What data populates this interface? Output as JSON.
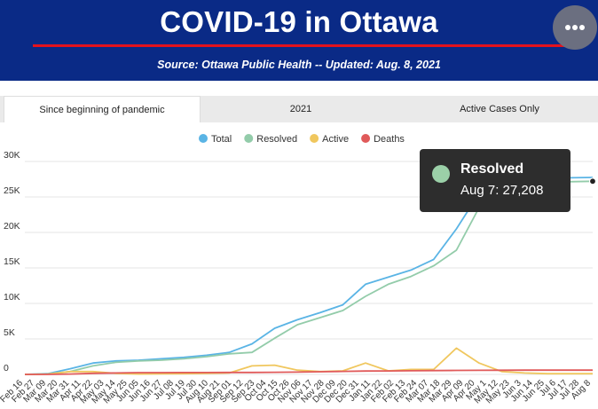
{
  "header": {
    "title": "COVID-19 in Ottawa",
    "source": "Source:  Ottawa Public Health -- Updated:  Aug. 8, 2021"
  },
  "menu": {
    "icon": "ellipsis-icon"
  },
  "tabs": [
    {
      "label": "Since beginning of pandemic",
      "active": true
    },
    {
      "label": "2021",
      "active": false
    },
    {
      "label": "Active Cases Only",
      "active": false
    }
  ],
  "tooltip": {
    "series": "Resolved",
    "date": "Aug 7",
    "value": "27,208",
    "text": "Aug 7: 27,208"
  },
  "chart_data": {
    "type": "line",
    "legend_position": "top-center",
    "grid": true,
    "ylim": [
      0,
      30000
    ],
    "y_ticks": [
      0,
      5000,
      10000,
      15000,
      20000,
      25000,
      30000
    ],
    "y_tick_labels": [
      "0",
      "5K",
      "10K",
      "15K",
      "20K",
      "25K",
      "30K"
    ],
    "x_tick_labels": [
      "Feb 16",
      "Feb 27",
      "Mar 09",
      "Mar 20",
      "Mar 31",
      "Apr 11",
      "Apr 22",
      "May 03",
      "May 14",
      "May 25",
      "Jun 05",
      "Jun 16",
      "Jun 27",
      "Jul 08",
      "Jul 19",
      "Jul 30",
      "Aug 10",
      "Aug 21",
      "Sep 01",
      "Sep 12",
      "Sep 23",
      "Oct 04",
      "Oct 15",
      "Oct 26",
      "Nov 06",
      "Nov 17",
      "Nov 28",
      "Dec 09",
      "Dec 20",
      "Dec 31",
      "Jan 11",
      "Jan 22",
      "Feb 02",
      "Feb 13",
      "Feb 24",
      "Mar 07",
      "Mar 18",
      "Mar 29",
      "Apr 09",
      "Apr 20",
      "May 1",
      "May 12",
      "May 23",
      "Jun 3",
      "Jun 14",
      "Jun 25",
      "Jul 6",
      "Jul 17",
      "Jul 28",
      "Aug 8"
    ],
    "x": [
      "Feb 16",
      "Mar 09",
      "Mar 31",
      "Apr 22",
      "May 14",
      "Jun 05",
      "Jun 27",
      "Jul 19",
      "Aug 10",
      "Sep 01",
      "Sep 23",
      "Oct 15",
      "Nov 06",
      "Nov 28",
      "Dec 20",
      "Jan 11",
      "Feb 02",
      "Feb 24",
      "Mar 18",
      "Apr 09",
      "May 1",
      "May 23",
      "Jun 14",
      "Jul 6",
      "Jul 28",
      "Aug 8"
    ],
    "series": [
      {
        "name": "Total",
        "color": "#5ab4e5",
        "values": [
          0,
          100,
          800,
          1600,
          1900,
          2000,
          2200,
          2400,
          2700,
          3100,
          4300,
          6500,
          7700,
          8700,
          9800,
          12700,
          13700,
          14700,
          16200,
          20500,
          25500,
          27100,
          27400,
          27600,
          27700,
          27750
        ]
      },
      {
        "name": "Resolved",
        "color": "#93ccaa",
        "values": [
          0,
          50,
          400,
          1200,
          1700,
          1900,
          2000,
          2200,
          2500,
          2900,
          3100,
          5100,
          7000,
          8000,
          9000,
          11000,
          12700,
          13800,
          15300,
          17500,
          23500,
          26500,
          27000,
          27100,
          27150,
          27208
        ]
      },
      {
        "name": "Active",
        "color": "#f0c75e",
        "values": [
          0,
          50,
          400,
          400,
          150,
          50,
          80,
          100,
          150,
          200,
          1200,
          1300,
          600,
          400,
          500,
          1600,
          500,
          700,
          700,
          3700,
          1600,
          400,
          200,
          100,
          100,
          100
        ]
      },
      {
        "name": "Deaths",
        "color": "#e05a5a",
        "values": [
          0,
          0,
          50,
          150,
          200,
          250,
          250,
          260,
          265,
          270,
          280,
          300,
          330,
          380,
          420,
          470,
          490,
          510,
          540,
          560,
          580,
          590,
          595,
          597,
          598,
          599
        ]
      }
    ]
  }
}
